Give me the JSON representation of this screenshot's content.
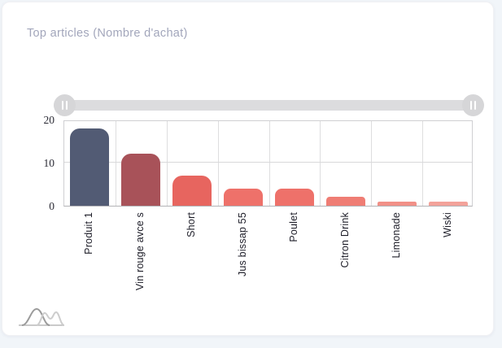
{
  "card": {
    "title": "Top articles (Nombre d'achat)"
  },
  "slider": {
    "handle_icon": "pause-grip-icon",
    "state": "full-range-selected"
  },
  "colors": {
    "page_bg": "#f1f5f9",
    "card_bg": "#ffffff",
    "title_text": "#a2a6bb",
    "slider_track": "#dcdcde",
    "slider_handle": "#d6d6d8",
    "grid_line": "#dededf",
    "plot_border": "#cfcfd2",
    "axis_text": "#2b2b35",
    "x_label_text": "#1d1d28"
  },
  "footer": {
    "icon": "sparkline-waves-icon"
  },
  "chart_data": {
    "type": "bar",
    "title": "Top articles (Nombre d'achat)",
    "categories": [
      "Produit 1",
      "Vin rouge avce s",
      "Short",
      "Jus bissap 55",
      "Poulet",
      "Citron Drink",
      "Limonade",
      "Wiski"
    ],
    "values": [
      18,
      12,
      7,
      4,
      4,
      2,
      1,
      1
    ],
    "bar_colors": [
      "#525b74",
      "#a85259",
      "#e7655f",
      "#ee716a",
      "#ee716a",
      "#ef7d74",
      "#f19087",
      "#f3a29a"
    ],
    "xlabel": "",
    "ylabel": "",
    "ylim": [
      0,
      20
    ],
    "yticks": [
      0,
      10,
      20
    ],
    "grid": true,
    "legend": false,
    "x_label_rotation": -90
  }
}
